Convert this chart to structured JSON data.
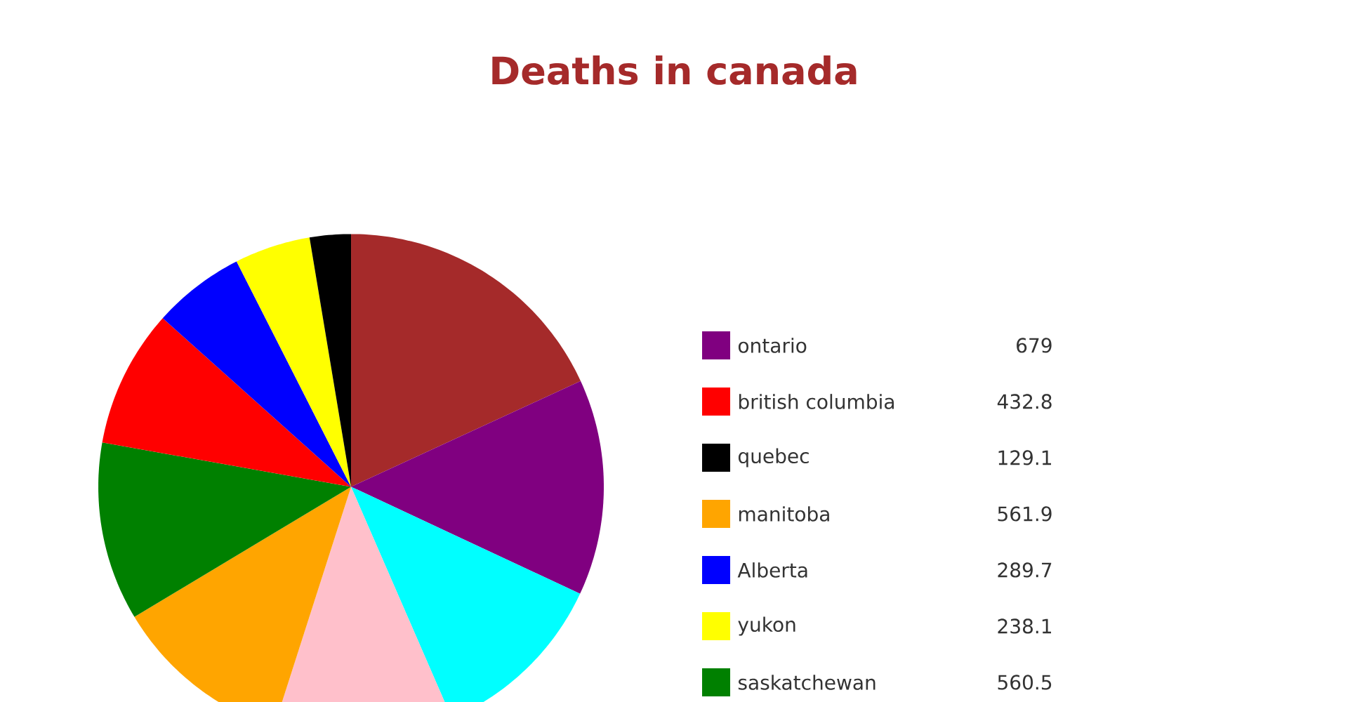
{
  "chart_data": {
    "type": "pie",
    "title": "Deaths in canada",
    "categories": [
      "ontario",
      "british columbia",
      "quebec",
      "manitoba",
      "Alberta",
      "yukon",
      "saskatchewan",
      null,
      null,
      null
    ],
    "values": [
      679,
      432.8,
      129.1,
      561.9,
      289.7,
      238.1,
      560.5,
      890,
      565,
      563
    ],
    "colors": [
      "#800080",
      "#ff0000",
      "#000000",
      "#ffa500",
      "#0000ff",
      "#ffff00",
      "#008000",
      "#a52a2a",
      "#00ffff",
      "#ffc0cb"
    ],
    "value_labels": [
      "679",
      "432.8",
      "129.1",
      "561.9",
      "289.7",
      "238.1",
      "560.5",
      null,
      null,
      null
    ],
    "legend": "right"
  }
}
